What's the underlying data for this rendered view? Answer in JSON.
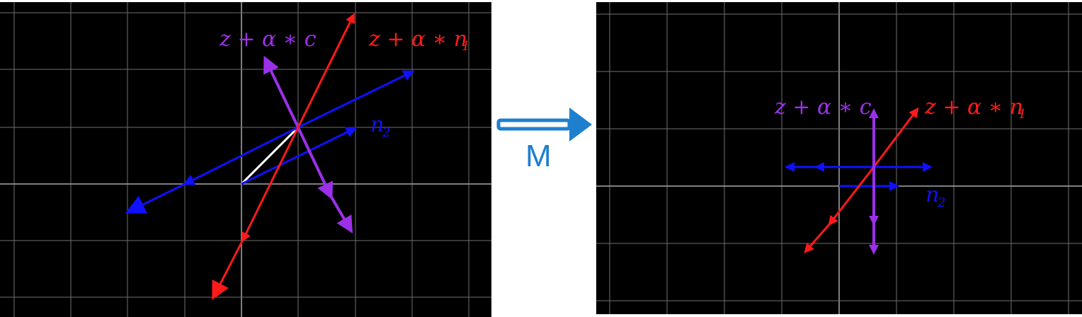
{
  "transform": {
    "label": "M"
  },
  "left": {
    "labels": {
      "z_alpha_c": "z + α ∗ c",
      "z_alpha_n1": "z + α ∗ n",
      "n1_sub": "1",
      "n2": "n",
      "n2_sub": "2"
    }
  },
  "right": {
    "labels": {
      "z_alpha_c": "z + α ∗ c",
      "z_alpha_n1": "z + α ∗ n",
      "n1_sub": "1",
      "n2": "n",
      "n2_sub": "2"
    }
  },
  "colors": {
    "purple": "#9b30e8",
    "red": "#ff1a1a",
    "blue": "#1010ff",
    "white": "#ffffff",
    "grid": "#7a7a7a",
    "arrow": "#1f7fcf"
  }
}
